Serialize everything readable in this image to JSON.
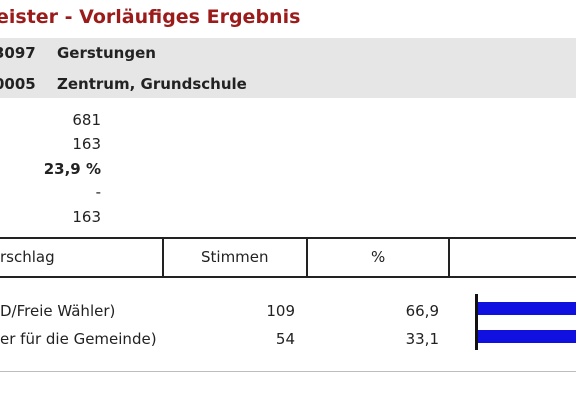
{
  "title": "eister - Vorläufiges Ergebnis",
  "info": {
    "municipality_code": "3097",
    "municipality_name": "Gerstungen",
    "district_code": "0005",
    "district_name": "Zentrum, Grundschule"
  },
  "stats": {
    "eligible": "681",
    "voters": "163",
    "turnout": "23,9 %",
    "invalid": "-",
    "valid": "163"
  },
  "table": {
    "headers": {
      "proposal": "rschlag",
      "votes": "Stimmen",
      "percent": "%"
    },
    "rows": [
      {
        "name": "D/Freie Wähler)",
        "votes": "109",
        "percent": "66,9",
        "share": 0.669
      },
      {
        "name": "er für die Gemeinde)",
        "votes": "54",
        "percent": "33,1",
        "share": 0.331
      }
    ]
  },
  "colors": {
    "title": "#9b1b1b",
    "bar": "#1010e0",
    "band": "#e6e6e6"
  }
}
